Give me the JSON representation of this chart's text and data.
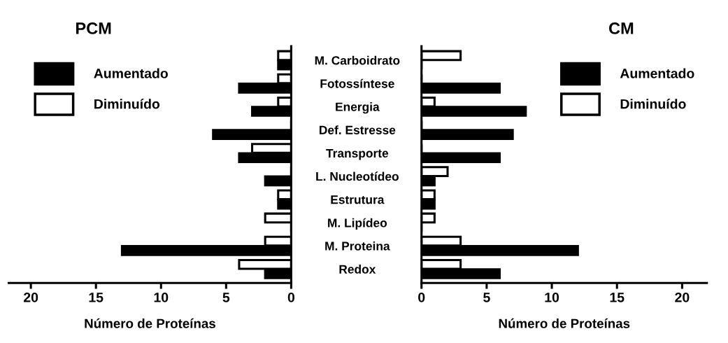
{
  "chart_data": [
    {
      "type": "bar",
      "orientation": "horizontal",
      "title": "PCM",
      "xlabel": "Número de Proteínas",
      "categories": [
        "M. Carboidrato",
        "Fotossíntese",
        "Energia",
        "Def. Estresse",
        "Transporte",
        "L. Nucleotídeo",
        "Estrutura",
        "M. Lipídeo",
        "M. Proteina",
        "Redox"
      ],
      "series": [
        {
          "name": "Diminuído",
          "color": "#ffffff",
          "values": [
            1,
            1,
            1,
            0,
            3,
            0,
            1,
            2,
            2,
            4
          ]
        },
        {
          "name": "Aumentado",
          "color": "#000000",
          "values": [
            1,
            4,
            3,
            6,
            4,
            2,
            1,
            0,
            13,
            2
          ]
        }
      ],
      "xlim": [
        21.7,
        0
      ],
      "xticks": [
        20,
        15,
        10,
        5,
        0
      ],
      "grid": false,
      "legend": "top left"
    },
    {
      "type": "bar",
      "orientation": "horizontal",
      "title": "CM",
      "xlabel": "Número de Proteínas",
      "categories": [
        null,
        null,
        null,
        null,
        null,
        null,
        null,
        null,
        null,
        null
      ],
      "series": [
        {
          "name": "Diminuído",
          "color": "#ffffff",
          "values": [
            3,
            0,
            1,
            0,
            0,
            2,
            1,
            1,
            3,
            3
          ]
        },
        {
          "name": "Aumentado",
          "color": "#000000",
          "values": [
            0,
            6,
            8,
            7,
            6,
            1,
            1,
            0,
            12,
            6
          ]
        }
      ],
      "xlim": [
        0,
        21.9
      ],
      "xticks": [
        0,
        5,
        10,
        15,
        20
      ],
      "grid": false,
      "legend": "top right",
      "tick_labels": "x"
    }
  ]
}
